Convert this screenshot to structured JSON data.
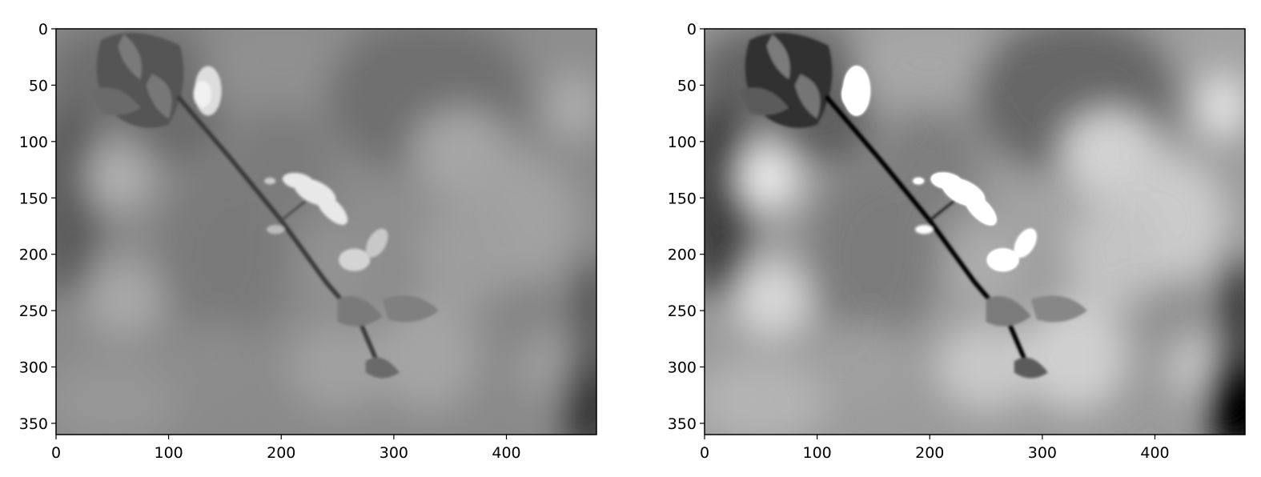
{
  "figure": {
    "background": "#ffffff",
    "panels": [
      {
        "name": "original-grayscale",
        "image_description_icon": "blurred-blossom-branch-image",
        "contrast": "low",
        "x_ticks": [
          "0",
          "100",
          "200",
          "300",
          "400"
        ],
        "y_ticks": [
          "0",
          "50",
          "100",
          "150",
          "200",
          "250",
          "300",
          "350"
        ]
      },
      {
        "name": "contrast-enhanced-grayscale",
        "image_description_icon": "blurred-blossom-branch-image",
        "contrast": "high",
        "x_ticks": [
          "0",
          "100",
          "200",
          "300",
          "400"
        ],
        "y_ticks": [
          "0",
          "50",
          "100",
          "150",
          "200",
          "250",
          "300",
          "350"
        ]
      }
    ]
  }
}
